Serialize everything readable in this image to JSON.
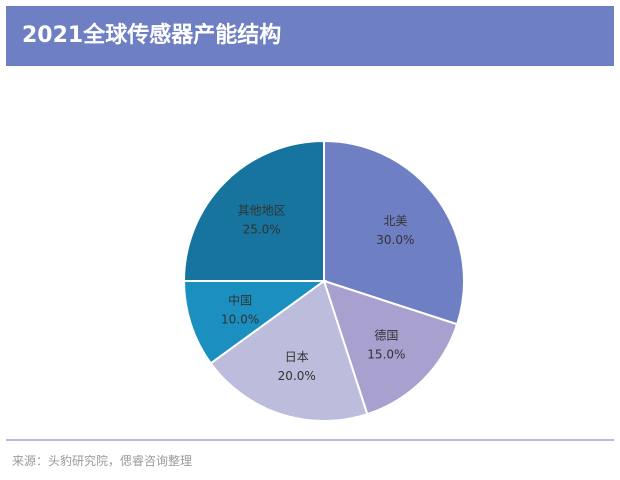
{
  "title": "2021全球传感器产能结构",
  "source": "来源：头豹研究院，偲睿咨询整理",
  "chart_data": {
    "type": "pie",
    "title": "2021全球传感器产能结构",
    "slices": [
      {
        "label": "北美",
        "value": 30.0,
        "display": "30.0%",
        "color": "#6f7fc4"
      },
      {
        "label": "德国",
        "value": 15.0,
        "display": "15.0%",
        "color": "#a8a0cf"
      },
      {
        "label": "日本",
        "value": 20.0,
        "display": "20.0%",
        "color": "#bcbcdc"
      },
      {
        "label": "中国",
        "value": 10.0,
        "display": "10.0%",
        "color": "#1a8fc0"
      },
      {
        "label": "其他地区",
        "value": 25.0,
        "display": "25.0%",
        "color": "#16749e"
      }
    ],
    "start_angle_deg": 0,
    "direction": "clockwise",
    "legend": "none"
  }
}
